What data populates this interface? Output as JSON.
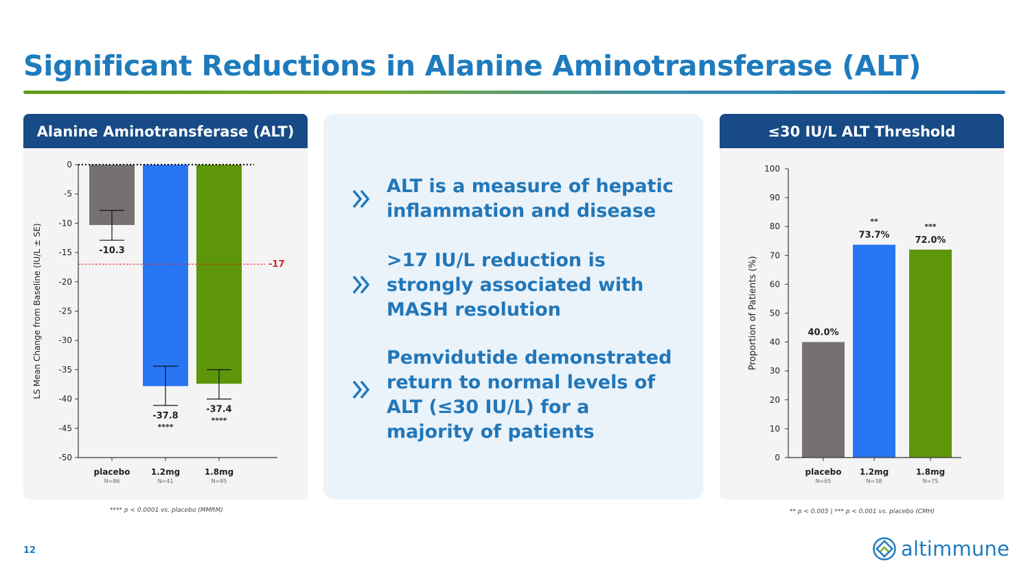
{
  "title": "Significant Reductions in Alanine Aminotransferase (ALT)",
  "page_number": "12",
  "logo_text": "altimmune",
  "left_panel": {
    "header": "Alanine Aminotransferase (ALT)",
    "footnote": "**** p < 0.0001 vs. placebo (MMRM)"
  },
  "right_panel": {
    "header": "≤30 IU/L ALT Threshold",
    "footnote": "** p < 0.005 | *** p < 0.001 vs. placebo (CMH)"
  },
  "center_points": [
    {
      "text": "ALT is a measure of hepatic inflammation and disease",
      "icon": "double-chevron-right-icon"
    },
    {
      "text": ">17 IU/L reduction is strongly associated with MASH resolution",
      "icon": "double-chevron-right-icon"
    },
    {
      "text": "Pemvidutide demonstrated return to normal levels of ALT (≤30 IU/L) for a majority of patients",
      "icon": "double-chevron-right-icon"
    }
  ],
  "colors": {
    "title": "#1e7bbd",
    "header_bg": "#174a86",
    "placebo": "#767171",
    "dose_1_2": "#2976f5",
    "dose_1_8": "#5e9609",
    "threshold_line": "#e02020"
  },
  "chart_data": [
    {
      "type": "bar",
      "categories": [
        "placebo",
        "1.2mg",
        "1.8mg"
      ],
      "category_n": [
        "N=86",
        "N=41",
        "N=85"
      ],
      "values": [
        -10.3,
        -37.8,
        -37.4
      ],
      "value_labels": [
        "-10.3",
        "-37.8",
        "-37.4"
      ],
      "error": [
        [
          -12.9,
          -7.8
        ],
        [
          -41.1,
          -34.4
        ],
        [
          -40.0,
          -35.0
        ]
      ],
      "significance": [
        "",
        "****",
        "****"
      ],
      "ylabel": "LS Mean Change from Baseline (IU/L ± SE)",
      "ylim": [
        -50,
        0
      ],
      "yticks": [
        0,
        -5,
        -10,
        -15,
        -20,
        -25,
        -30,
        -35,
        -40,
        -45,
        -50
      ],
      "reference_line": {
        "value": -17,
        "label": "-17"
      },
      "zero_line": "dotted"
    },
    {
      "type": "bar",
      "categories": [
        "placebo",
        "1.2mg",
        "1.8mg"
      ],
      "category_n": [
        "N=65",
        "N=38",
        "N=75"
      ],
      "values": [
        40.0,
        73.7,
        72.0
      ],
      "value_labels": [
        "40.0%",
        "73.7%",
        "72.0%"
      ],
      "significance": [
        "",
        "**",
        "***"
      ],
      "ylabel": "Proportion of Patients (%)",
      "ylim": [
        0,
        100
      ],
      "yticks": [
        0,
        10,
        20,
        30,
        40,
        50,
        60,
        70,
        80,
        90,
        100
      ]
    }
  ]
}
